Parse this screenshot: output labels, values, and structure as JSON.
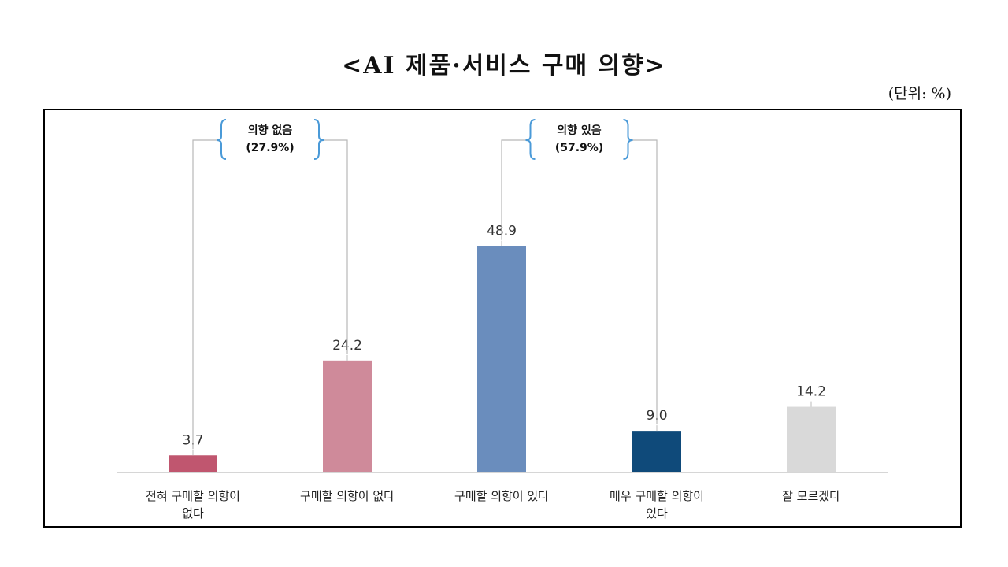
{
  "title": "<AI 제품·서비스 구매 의향>",
  "unit_note": "(단위: %)",
  "chart_data": {
    "type": "bar",
    "categories": [
      "전혀 구매할 의향이 없다",
      "구매할 의향이 없다",
      "구매할 의향이 있다",
      "매우 구매할 의향이 있다",
      "잘 모르겠다"
    ],
    "category_lines": [
      [
        "전혀 구매할 의향이",
        "없다"
      ],
      [
        "구매할 의향이 없다"
      ],
      [
        "구매할 의향이 있다"
      ],
      [
        "매우 구매할 의향이",
        "있다"
      ],
      [
        "잘 모르겠다"
      ]
    ],
    "values": [
      3.7,
      24.2,
      48.9,
      9.0,
      14.2
    ],
    "value_labels": [
      "3.7",
      "24.2",
      "48.9",
      "9.0",
      "14.2"
    ],
    "colors": [
      "#c0566f",
      "#cf8a9a",
      "#6a8dbd",
      "#0f4a7a",
      "#d9d9d9"
    ],
    "ylim": [
      0,
      60
    ],
    "grid": false,
    "legend": "none",
    "groups": [
      {
        "lines": [
          "의향 없음",
          "(27.9%)"
        ],
        "from": 0,
        "to": 1,
        "color": "#4a9ad8"
      },
      {
        "lines": [
          "의향 있음",
          "(57.9%)"
        ],
        "from": 2,
        "to": 3,
        "color": "#4a9ad8"
      }
    ]
  }
}
